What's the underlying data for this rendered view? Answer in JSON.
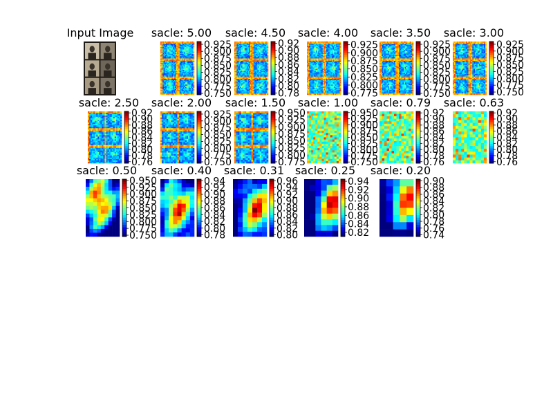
{
  "figure": {
    "background": "#ffffff",
    "colormap": "jet",
    "colormap_stops": [
      "#00007f",
      "#0000ff",
      "#007fff",
      "#00ffff",
      "#7fff7f",
      "#ffff00",
      "#ff7f00",
      "#ff0000",
      "#7f0000"
    ]
  },
  "input_panel": {
    "title": "Input Image",
    "grid": "3x2 vintage portrait photographs"
  },
  "chart_data": [
    {
      "type": "heatmap",
      "title": "sacle: 5.00",
      "colorbar_ticks": [
        "0.925",
        "0.900",
        "0.875",
        "0.850",
        "0.825",
        "0.800",
        "0.775",
        "0.750"
      ],
      "value_range": [
        0.745,
        0.935
      ],
      "pattern": "edges",
      "grid_cells": 30
    },
    {
      "type": "heatmap",
      "title": "sacle: 4.50",
      "colorbar_ticks": [
        "0.92",
        "0.90",
        "0.88",
        "0.86",
        "0.84",
        "0.82",
        "0.80",
        "0.78"
      ],
      "value_range": [
        0.775,
        0.925
      ],
      "pattern": "edges",
      "grid_cells": 30
    },
    {
      "type": "heatmap",
      "title": "sacle: 4.00",
      "colorbar_ticks": [
        "0.925",
        "0.900",
        "0.875",
        "0.850",
        "0.825",
        "0.800",
        "0.775"
      ],
      "value_range": [
        0.77,
        0.935
      ],
      "pattern": "edges",
      "grid_cells": 30
    },
    {
      "type": "heatmap",
      "title": "sacle: 3.50",
      "colorbar_ticks": [
        "0.925",
        "0.900",
        "0.875",
        "0.850",
        "0.825",
        "0.800",
        "0.775",
        "0.750"
      ],
      "value_range": [
        0.745,
        0.935
      ],
      "pattern": "edges",
      "grid_cells": 28
    },
    {
      "type": "heatmap",
      "title": "sacle: 3.00",
      "colorbar_ticks": [
        "0.925",
        "0.900",
        "0.875",
        "0.850",
        "0.825",
        "0.800",
        "0.775",
        "0.750"
      ],
      "value_range": [
        0.74,
        0.935
      ],
      "pattern": "edges",
      "grid_cells": 26
    },
    {
      "type": "heatmap",
      "title": "sacle: 2.50",
      "colorbar_ticks": [
        "0.92",
        "0.90",
        "0.88",
        "0.86",
        "0.84",
        "0.82",
        "0.80",
        "0.78",
        "0.76"
      ],
      "value_range": [
        0.755,
        0.925
      ],
      "pattern": "edges",
      "grid_cells": 24
    },
    {
      "type": "heatmap",
      "title": "sacle: 2.00",
      "colorbar_ticks": [
        "0.925",
        "0.900",
        "0.875",
        "0.850",
        "0.825",
        "0.800",
        "0.775",
        "0.750"
      ],
      "value_range": [
        0.745,
        0.935
      ],
      "pattern": "edges",
      "grid_cells": 22
    },
    {
      "type": "heatmap",
      "title": "sacle: 1.50",
      "colorbar_ticks": [
        "0.950",
        "0.925",
        "0.900",
        "0.875",
        "0.850",
        "0.825",
        "0.800",
        "0.775"
      ],
      "value_range": [
        0.77,
        0.955
      ],
      "pattern": "edges",
      "grid_cells": 20
    },
    {
      "type": "heatmap",
      "title": "sacle: 1.00",
      "colorbar_ticks": [
        "0.950",
        "0.925",
        "0.900",
        "0.875",
        "0.850",
        "0.825",
        "0.800",
        "0.775",
        "0.750"
      ],
      "value_range": [
        0.745,
        0.955
      ],
      "pattern": "blotchy",
      "grid_cells": 16
    },
    {
      "type": "heatmap",
      "title": "sacle: 0.79",
      "colorbar_ticks": [
        "0.92",
        "0.90",
        "0.88",
        "0.86",
        "0.84",
        "0.82",
        "0.80",
        "0.78",
        "0.76"
      ],
      "value_range": [
        0.755,
        0.925
      ],
      "pattern": "blotchy",
      "grid_cells": 14
    },
    {
      "type": "heatmap",
      "title": "sacle: 0.63",
      "colorbar_ticks": [
        "0.92",
        "0.90",
        "0.88",
        "0.86",
        "0.84",
        "0.82",
        "0.80",
        "0.78",
        "0.76"
      ],
      "value_range": [
        0.755,
        0.925
      ],
      "pattern": "blotchy",
      "grid_cells": 12
    },
    {
      "type": "heatmap",
      "title": "sacle: 0.50",
      "colorbar_ticks": [
        "0.950",
        "0.925",
        "0.900",
        "0.875",
        "0.850",
        "0.825",
        "0.800",
        "0.775",
        "0.750"
      ],
      "value_range": [
        0.745,
        0.955
      ],
      "pattern": "smooth",
      "grid_cells": 9
    },
    {
      "type": "heatmap",
      "title": "sacle: 0.40",
      "colorbar_ticks": [
        "0.94",
        "0.92",
        "0.90",
        "0.88",
        "0.86",
        "0.84",
        "0.82",
        "0.80",
        "0.78"
      ],
      "value_range": [
        0.775,
        0.945
      ],
      "pattern": "smooth",
      "grid_cells": 8
    },
    {
      "type": "heatmap",
      "title": "sacle: 0.31",
      "colorbar_ticks": [
        "0.96",
        "0.94",
        "0.92",
        "0.90",
        "0.88",
        "0.86",
        "0.84",
        "0.82",
        "0.80"
      ],
      "value_range": [
        0.795,
        0.965
      ],
      "pattern": "smooth",
      "grid_cells": 7
    },
    {
      "type": "heatmap",
      "title": "sacle: 0.25",
      "colorbar_ticks": [
        "0.94",
        "0.92",
        "0.90",
        "0.88",
        "0.86",
        "0.84",
        "0.82"
      ],
      "value_range": [
        0.81,
        0.945
      ],
      "pattern": "smooth",
      "grid_cells": 6
    },
    {
      "type": "heatmap",
      "title": "sacle: 0.20",
      "colorbar_ticks": [
        "0.90",
        "0.88",
        "0.86",
        "0.84",
        "0.82",
        "0.80",
        "0.78",
        "0.76",
        "0.74"
      ],
      "value_range": [
        0.735,
        0.905
      ],
      "pattern": "smooth",
      "grid_cells": 5
    }
  ]
}
